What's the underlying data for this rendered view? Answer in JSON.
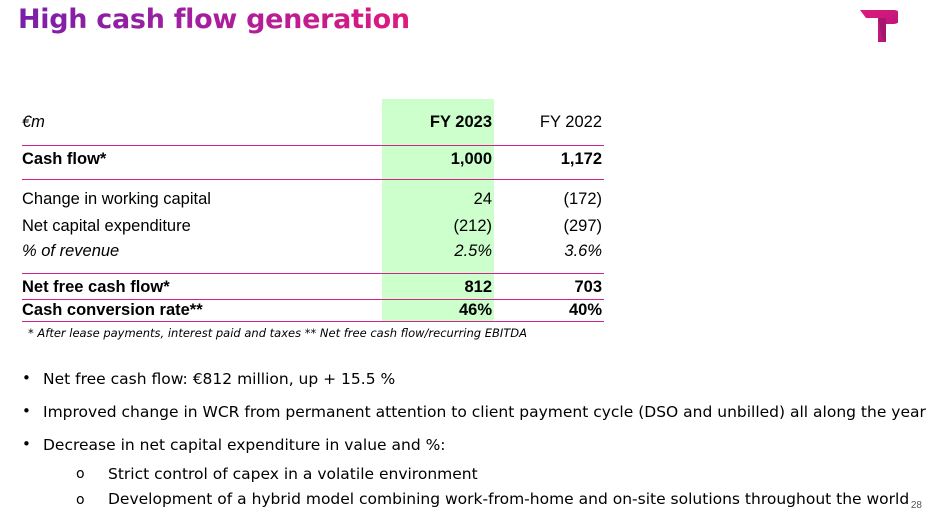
{
  "title": "High cash flow generation",
  "table": {
    "header": {
      "label": "€m",
      "col1": "FY 2023",
      "col2": "FY 2022"
    },
    "rows": [
      {
        "label": "Cash flow*",
        "v1": "1,000",
        "v2": "1,172"
      },
      {
        "label": "Change in working capital",
        "v1": "24",
        "v2": "(172)"
      },
      {
        "label": "Net capital expenditure",
        "v1": "(212)",
        "v2": "(297)"
      },
      {
        "label": "% of revenue",
        "v1": "2.5%",
        "v2": "3.6%"
      },
      {
        "label": "Net free cash flow*",
        "v1": "812",
        "v2": "703"
      },
      {
        "label": "Cash conversion rate**",
        "v1": "46%",
        "v2": "40%"
      }
    ],
    "footnote": "* After lease payments, interest paid and taxes ** Net free cash flow/recurring EBITDA"
  },
  "bullets": [
    "Net free cash flow: €812 million, up + 15.5 %",
    "Improved change in WCR from permanent attention to client payment cycle (DSO and unbilled) all along the year",
    "Decrease in net capital expenditure in value and %:"
  ],
  "sub_bullets": [
    "Strict control of capex in a volatile environment",
    "Development of a hybrid model combining work-from-home and on-site solutions throughout the world"
  ],
  "bullet_glyph": "•",
  "sub_bullet_glyph": "o",
  "page_number": "28",
  "colors": {
    "accent": "#d1228d",
    "highlight": "#ccffcc",
    "title_start": "#7a1fa8",
    "title_end": "#e0197d"
  }
}
